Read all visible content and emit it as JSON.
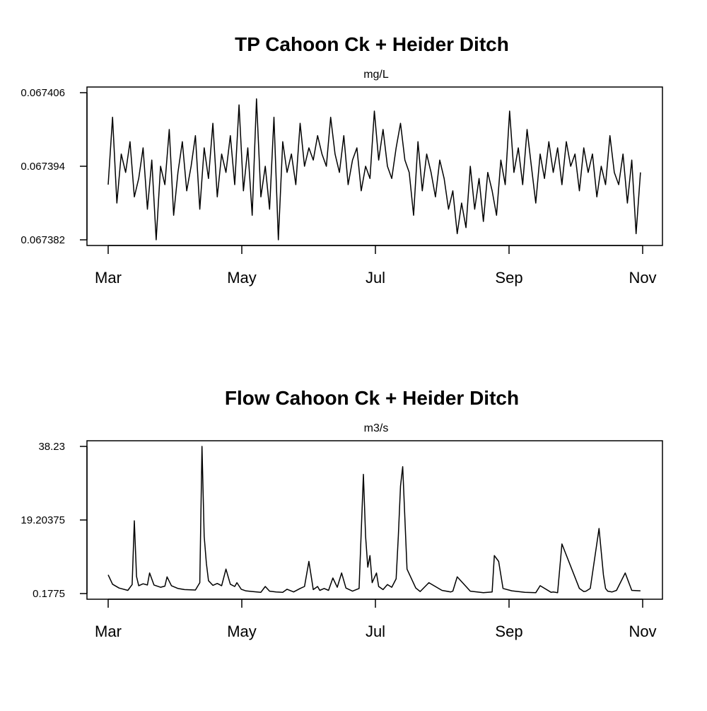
{
  "chart_data": [
    {
      "type": "line",
      "title": "TP Cahoon Ck + Heider Ditch",
      "subtitle": "mg/L",
      "xlabel": "",
      "ylabel": "",
      "x_ticks": [
        "Mar",
        "May",
        "Jul",
        "Sep",
        "Nov"
      ],
      "y_ticks": [
        "0.067382",
        "0.067394",
        "0.067406"
      ],
      "ylim": [
        0.067382,
        0.067406
      ],
      "x_start": "2018-03-01",
      "x_end": "2018-11-01",
      "grid": false,
      "legend": "none",
      "series": [
        {
          "x": [
            "2018-03-01",
            "2018-03-03",
            "2018-03-05",
            "2018-03-07",
            "2018-03-09",
            "2018-03-11",
            "2018-03-13",
            "2018-03-15",
            "2018-03-17",
            "2018-03-19",
            "2018-03-21",
            "2018-03-23",
            "2018-03-25",
            "2018-03-27",
            "2018-03-29",
            "2018-03-31",
            "2018-04-02",
            "2018-04-04",
            "2018-04-06",
            "2018-04-08",
            "2018-04-10",
            "2018-04-12",
            "2018-04-14",
            "2018-04-16",
            "2018-04-18",
            "2018-04-20",
            "2018-04-22",
            "2018-04-24",
            "2018-04-26",
            "2018-04-28",
            "2018-04-30",
            "2018-05-02",
            "2018-05-04",
            "2018-05-06",
            "2018-05-08",
            "2018-05-10",
            "2018-05-12",
            "2018-05-14",
            "2018-05-16",
            "2018-05-18",
            "2018-05-20",
            "2018-05-22",
            "2018-05-24",
            "2018-05-26",
            "2018-05-28",
            "2018-05-30",
            "2018-06-01",
            "2018-06-03",
            "2018-06-05",
            "2018-06-07",
            "2018-06-09",
            "2018-06-11",
            "2018-06-13",
            "2018-06-15",
            "2018-06-17",
            "2018-06-19",
            "2018-06-21",
            "2018-06-23",
            "2018-06-25",
            "2018-06-27",
            "2018-06-29",
            "2018-07-01",
            "2018-07-03",
            "2018-07-05",
            "2018-07-07",
            "2018-07-09",
            "2018-07-11",
            "2018-07-13",
            "2018-07-15",
            "2018-07-17",
            "2018-07-19",
            "2018-07-21",
            "2018-07-23",
            "2018-07-25",
            "2018-07-27",
            "2018-07-29",
            "2018-07-31",
            "2018-08-02",
            "2018-08-04",
            "2018-08-06",
            "2018-08-08",
            "2018-08-10",
            "2018-08-12",
            "2018-08-14",
            "2018-08-16",
            "2018-08-18",
            "2018-08-20",
            "2018-08-22",
            "2018-08-24",
            "2018-08-26",
            "2018-08-28",
            "2018-08-30",
            "2018-09-01",
            "2018-09-03",
            "2018-09-05",
            "2018-09-07",
            "2018-09-09",
            "2018-09-11",
            "2018-09-13",
            "2018-09-15",
            "2018-09-17",
            "2018-09-19",
            "2018-09-21",
            "2018-09-23",
            "2018-09-25",
            "2018-09-27",
            "2018-09-29",
            "2018-10-01",
            "2018-10-03",
            "2018-10-05",
            "2018-10-07",
            "2018-10-09",
            "2018-10-11",
            "2018-10-13",
            "2018-10-15",
            "2018-10-17",
            "2018-10-19",
            "2018-10-21",
            "2018-10-23",
            "2018-10-25",
            "2018-10-27",
            "2018-10-29",
            "2018-10-31"
          ],
          "values": [
            0.067391,
            0.067402,
            0.067388,
            0.067396,
            0.067393,
            0.067398,
            0.067389,
            0.067392,
            0.067397,
            0.067387,
            0.067395,
            0.067382,
            0.067394,
            0.067391,
            0.0674,
            0.067386,
            0.067393,
            0.067398,
            0.06739,
            0.067394,
            0.067399,
            0.067387,
            0.067397,
            0.067392,
            0.067401,
            0.067389,
            0.067396,
            0.067393,
            0.067399,
            0.067391,
            0.067404,
            0.06739,
            0.067397,
            0.067386,
            0.067405,
            0.067389,
            0.067394,
            0.067387,
            0.067402,
            0.067382,
            0.067398,
            0.067393,
            0.067396,
            0.067391,
            0.067401,
            0.067394,
            0.067397,
            0.067395,
            0.067399,
            0.067396,
            0.067394,
            0.067402,
            0.067396,
            0.067393,
            0.067399,
            0.067391,
            0.067395,
            0.067397,
            0.06739,
            0.067394,
            0.067392,
            0.067403,
            0.067395,
            0.0674,
            0.067394,
            0.067392,
            0.067397,
            0.067401,
            0.067395,
            0.067393,
            0.067386,
            0.067398,
            0.06739,
            0.067396,
            0.067393,
            0.067389,
            0.067395,
            0.067392,
            0.067387,
            0.06739,
            0.067383,
            0.067388,
            0.067384,
            0.067394,
            0.067387,
            0.067392,
            0.067385,
            0.067393,
            0.06739,
            0.067386,
            0.067395,
            0.067391,
            0.067403,
            0.067393,
            0.067397,
            0.067391,
            0.0674,
            0.067394,
            0.067388,
            0.067396,
            0.067392,
            0.067398,
            0.067393,
            0.067397,
            0.067391,
            0.067398,
            0.067394,
            0.067396,
            0.06739,
            0.067397,
            0.067393,
            0.067396,
            0.067389,
            0.067394,
            0.067391,
            0.067399,
            0.067393,
            0.067391,
            0.067396,
            0.067388,
            0.067395,
            0.067383,
            0.067393
          ]
        }
      ]
    },
    {
      "type": "line",
      "title": "Flow Cahoon Ck + Heider Ditch",
      "subtitle": "m3/s",
      "xlabel": "",
      "ylabel": "",
      "x_ticks": [
        "Mar",
        "May",
        "Jul",
        "Sep",
        "Nov"
      ],
      "y_ticks": [
        "0.1775",
        "19.20375",
        "38.23"
      ],
      "ylim": [
        0.1775,
        38.23
      ],
      "x_start": "2018-03-01",
      "x_end": "2018-11-01",
      "grid": false,
      "legend": "none",
      "series": [
        {
          "x": [
            "2018-03-01",
            "2018-03-03",
            "2018-03-06",
            "2018-03-10",
            "2018-03-12",
            "2018-03-13",
            "2018-03-14",
            "2018-03-15",
            "2018-03-17",
            "2018-03-19",
            "2018-03-20",
            "2018-03-22",
            "2018-03-25",
            "2018-03-27",
            "2018-03-28",
            "2018-03-30",
            "2018-04-02",
            "2018-04-05",
            "2018-04-10",
            "2018-04-12",
            "2018-04-13",
            "2018-04-14",
            "2018-04-15",
            "2018-04-16",
            "2018-04-18",
            "2018-04-20",
            "2018-04-22",
            "2018-04-24",
            "2018-04-26",
            "2018-04-28",
            "2018-04-29",
            "2018-05-01",
            "2018-05-03",
            "2018-05-06",
            "2018-05-10",
            "2018-05-12",
            "2018-05-14",
            "2018-05-17",
            "2018-05-20",
            "2018-05-22",
            "2018-05-25",
            "2018-05-28",
            "2018-05-30",
            "2018-06-01",
            "2018-06-03",
            "2018-06-05",
            "2018-06-06",
            "2018-06-08",
            "2018-06-10",
            "2018-06-12",
            "2018-06-14",
            "2018-06-16",
            "2018-06-18",
            "2018-06-21",
            "2018-06-24",
            "2018-06-26",
            "2018-06-27",
            "2018-06-28",
            "2018-06-29",
            "2018-06-30",
            "2018-07-02",
            "2018-07-03",
            "2018-07-05",
            "2018-07-07",
            "2018-07-09",
            "2018-07-11",
            "2018-07-12",
            "2018-07-13",
            "2018-07-14",
            "2018-07-16",
            "2018-07-20",
            "2018-07-22",
            "2018-07-26",
            "2018-08-01",
            "2018-08-05",
            "2018-08-06",
            "2018-08-08",
            "2018-08-14",
            "2018-08-20",
            "2018-08-24",
            "2018-08-25",
            "2018-08-27",
            "2018-08-29",
            "2018-09-02",
            "2018-09-08",
            "2018-09-13",
            "2018-09-15",
            "2018-09-20",
            "2018-09-21",
            "2018-09-23",
            "2018-09-25",
            "2018-10-03",
            "2018-10-05",
            "2018-10-06",
            "2018-10-08",
            "2018-10-12",
            "2018-10-14",
            "2018-10-15",
            "2018-10-16",
            "2018-10-18",
            "2018-10-20",
            "2018-10-24",
            "2018-10-27",
            "2018-10-31"
          ],
          "values": [
            5.0,
            2.6,
            1.6,
            1.0,
            2.5,
            19.0,
            4.6,
            2.2,
            2.7,
            2.4,
            5.5,
            2.4,
            1.8,
            2.1,
            4.5,
            2.2,
            1.5,
            1.2,
            1.1,
            3.0,
            38.23,
            15.0,
            8.0,
            3.5,
            2.3,
            2.8,
            2.2,
            6.5,
            2.6,
            2.0,
            3.0,
            1.3,
            0.9,
            0.7,
            0.5,
            2.0,
            0.8,
            0.6,
            0.5,
            1.3,
            0.6,
            1.5,
            2.0,
            8.5,
            1.2,
            2.0,
            1.0,
            1.5,
            1.0,
            4.2,
            1.8,
            5.5,
            1.6,
            0.8,
            1.5,
            31.0,
            15.0,
            7.0,
            10.0,
            3.0,
            5.5,
            2.0,
            1.2,
            2.5,
            1.8,
            4.0,
            15.0,
            28.0,
            33.0,
            6.5,
            1.6,
            0.7,
            3.0,
            1.0,
            0.6,
            0.8,
            4.5,
            0.8,
            0.4,
            0.6,
            10.0,
            8.5,
            1.5,
            0.9,
            0.5,
            0.4,
            2.2,
            0.5,
            0.6,
            0.4,
            13.0,
            1.5,
            0.7,
            0.8,
            1.5,
            17.0,
            5.0,
            1.5,
            0.8,
            0.6,
            1.0,
            5.5,
            1.0,
            0.9
          ]
        }
      ]
    }
  ]
}
